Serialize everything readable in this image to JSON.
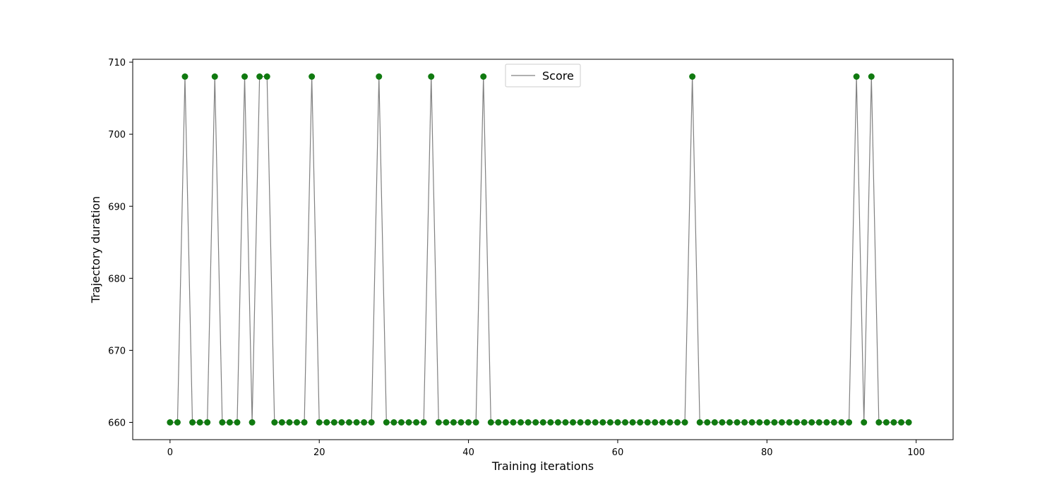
{
  "chart_data": {
    "type": "line",
    "title": "",
    "xlabel": "Training iterations",
    "ylabel": "Trajectory duration",
    "xlim": [
      -5,
      104.95
    ],
    "ylim": [
      657.6,
      710.4
    ],
    "xticks": [
      0,
      20,
      40,
      60,
      80,
      100
    ],
    "yticks": [
      660,
      670,
      680,
      690,
      700,
      710
    ],
    "grid": false,
    "legend_position": "upper center",
    "series": [
      {
        "name": "Score",
        "line_color": "#808080",
        "marker_color": "#107a10",
        "x": [
          0,
          1,
          2,
          3,
          4,
          5,
          6,
          7,
          8,
          9,
          10,
          11,
          12,
          13,
          14,
          15,
          16,
          17,
          18,
          19,
          20,
          21,
          22,
          23,
          24,
          25,
          26,
          27,
          28,
          29,
          30,
          31,
          32,
          33,
          34,
          35,
          36,
          37,
          38,
          39,
          40,
          41,
          42,
          43,
          44,
          45,
          46,
          47,
          48,
          49,
          50,
          51,
          52,
          53,
          54,
          55,
          56,
          57,
          58,
          59,
          60,
          61,
          62,
          63,
          64,
          65,
          66,
          67,
          68,
          69,
          70,
          71,
          72,
          73,
          74,
          75,
          76,
          77,
          78,
          79,
          80,
          81,
          82,
          83,
          84,
          85,
          86,
          87,
          88,
          89,
          90,
          91,
          92,
          93,
          94,
          95,
          96,
          97,
          98,
          99
        ],
        "values": [
          660,
          660,
          708,
          660,
          660,
          660,
          708,
          660,
          660,
          660,
          708,
          660,
          708,
          708,
          660,
          660,
          660,
          660,
          660,
          708,
          660,
          660,
          660,
          660,
          660,
          660,
          660,
          660,
          708,
          660,
          660,
          660,
          660,
          660,
          660,
          708,
          660,
          660,
          660,
          660,
          660,
          660,
          708,
          660,
          660,
          660,
          660,
          660,
          660,
          660,
          660,
          660,
          660,
          660,
          660,
          660,
          660,
          660,
          660,
          660,
          660,
          660,
          660,
          660,
          660,
          660,
          660,
          660,
          660,
          660,
          708,
          660,
          660,
          660,
          660,
          660,
          660,
          660,
          660,
          660,
          660,
          660,
          660,
          660,
          660,
          660,
          660,
          660,
          660,
          660,
          660,
          660,
          708,
          660,
          708,
          660,
          660,
          660,
          660,
          660
        ]
      }
    ]
  }
}
